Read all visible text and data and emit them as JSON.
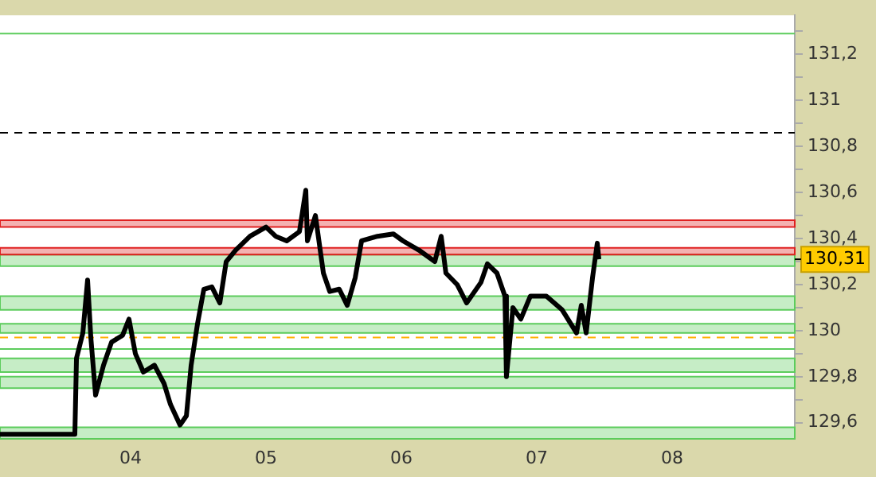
{
  "chart_data": {
    "type": "line",
    "x": [
      3.035,
      3.588,
      3.6,
      3.647,
      3.682,
      3.706,
      3.741,
      3.8,
      3.859,
      3.941,
      3.988,
      4.035,
      4.094,
      4.176,
      4.247,
      4.294,
      4.365,
      4.412,
      4.447,
      4.494,
      4.541,
      4.6,
      4.659,
      4.706,
      4.776,
      4.882,
      5.0,
      5.071,
      5.153,
      5.247,
      5.294,
      5.306,
      5.365,
      5.424,
      5.471,
      5.541,
      5.6,
      5.659,
      5.706,
      5.824,
      5.941,
      6.012,
      6.129,
      6.247,
      6.294,
      6.329,
      6.412,
      6.482,
      6.588,
      6.635,
      6.706,
      6.765,
      6.776,
      6.824,
      6.882,
      6.953,
      7.071,
      7.188,
      7.294,
      7.329,
      7.365,
      7.412,
      7.447,
      7.459
    ],
    "series": [
      {
        "color": "#000000",
        "values": [
          129.55,
          129.55,
          129.88,
          129.99,
          130.22,
          129.97,
          129.72,
          129.85,
          129.95,
          129.98,
          130.05,
          129.9,
          129.82,
          129.85,
          129.77,
          129.68,
          129.59,
          129.63,
          129.85,
          130.03,
          130.18,
          130.19,
          130.12,
          130.3,
          130.35,
          130.41,
          130.45,
          130.41,
          130.39,
          130.43,
          130.61,
          130.39,
          130.5,
          130.25,
          130.17,
          130.18,
          130.11,
          130.23,
          130.39,
          130.41,
          130.42,
          130.39,
          130.35,
          130.3,
          130.41,
          130.25,
          130.2,
          130.12,
          130.21,
          130.29,
          130.25,
          130.15,
          129.8,
          130.1,
          130.05,
          130.15,
          130.15,
          130.09,
          129.99,
          130.11,
          129.99,
          130.23,
          130.38,
          130.31
        ]
      }
    ],
    "xlim": [
      3.035,
      8.906
    ],
    "xticks": [
      {
        "value": 4,
        "label": "04"
      },
      {
        "value": 5,
        "label": "05"
      },
      {
        "value": 6,
        "label": "06"
      },
      {
        "value": 7,
        "label": "07"
      },
      {
        "value": 8,
        "label": "08"
      }
    ],
    "ylim": [
      129.53,
      131.37
    ],
    "yticks": [
      {
        "value": 129.6,
        "label": "129,6"
      },
      {
        "value": 129.7,
        "label": null
      },
      {
        "value": 129.8,
        "label": "129,8"
      },
      {
        "value": 129.9,
        "label": null
      },
      {
        "value": 130,
        "label": "130"
      },
      {
        "value": 130.1,
        "label": null
      },
      {
        "value": 130.2,
        "label": "130,2"
      },
      {
        "value": 130.3,
        "label": null
      },
      {
        "value": 130.4,
        "label": "130,4"
      },
      {
        "value": 130.5,
        "label": null
      },
      {
        "value": 130.6,
        "label": "130,6"
      },
      {
        "value": 130.7,
        "label": null
      },
      {
        "value": 130.8,
        "label": "130,8"
      },
      {
        "value": 130.9,
        "label": null
      },
      {
        "value": 131,
        "label": "131"
      },
      {
        "value": 131.1,
        "label": null
      },
      {
        "value": 131.2,
        "label": "131,2"
      },
      {
        "value": 131.3,
        "label": null
      }
    ],
    "ref_lines": [
      {
        "axis": "y",
        "value": 130.86,
        "color": "#000000",
        "line_style": "dashed"
      },
      {
        "axis": "y",
        "value": 129.97,
        "color": "#ffb000",
        "line_style": "dashed"
      },
      {
        "axis": "y",
        "value": 131.29,
        "color": "#5ccc5c",
        "line_style": "solid"
      },
      {
        "axis": "y",
        "value": 129.92,
        "color": "#5ccc5c",
        "line_style": "solid"
      }
    ],
    "bands": [
      {
        "axis": "y",
        "from": 129.53,
        "to": 129.58,
        "color": "#5ccc5c"
      },
      {
        "axis": "y",
        "from": 130.09,
        "to": 130.15,
        "color": "#5ccc5c"
      },
      {
        "axis": "y",
        "from": 130.28,
        "to": 130.33,
        "color": "#5ccc5c"
      },
      {
        "axis": "y",
        "from": 129.75,
        "to": 129.8,
        "color": "#5ccc5c"
      },
      {
        "axis": "y",
        "from": 129.99,
        "to": 130.03,
        "color": "#5ccc5c"
      },
      {
        "axis": "y",
        "from": 129.82,
        "to": 129.88,
        "color": "#5ccc5c"
      },
      {
        "axis": "y",
        "from": 130.45,
        "to": 130.48,
        "color": "#e02020"
      },
      {
        "axis": "y",
        "from": 130.33,
        "to": 130.36,
        "color": "#e02020"
      }
    ],
    "annotations": [
      "130,31"
    ],
    "grid": false,
    "legend": false,
    "marker": "none",
    "line_style": "solid"
  }
}
